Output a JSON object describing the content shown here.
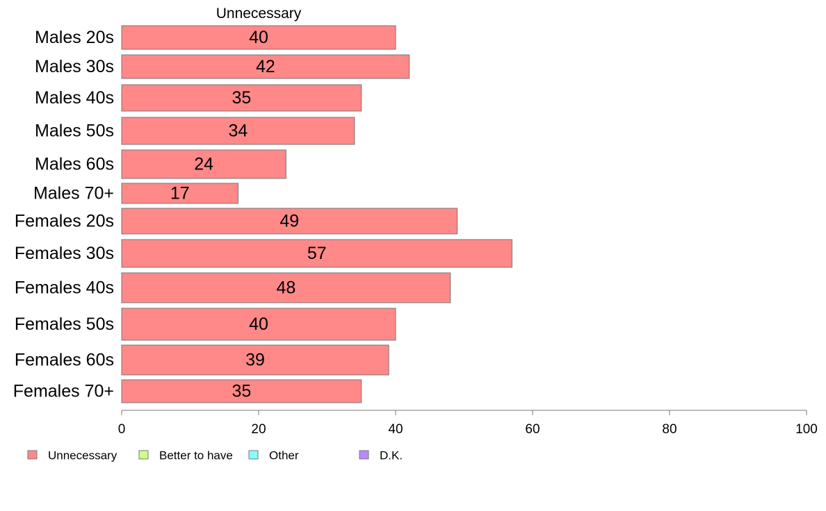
{
  "chart_data": {
    "type": "bar",
    "orientation": "horizontal",
    "title": "Unnecessary",
    "categories": [
      "Males 20s",
      "Males 30s",
      "Males 40s",
      "Males 50s",
      "Males 60s",
      "Males 70+",
      "Females 20s",
      "Females 30s",
      "Females 40s",
      "Females 50s",
      "Females 60s",
      "Females 70+"
    ],
    "series": [
      {
        "name": "Unnecessary",
        "color": "#ff8888",
        "values": [
          40,
          42,
          35,
          34,
          24,
          17,
          49,
          57,
          48,
          40,
          39,
          35
        ]
      }
    ],
    "xlim": [
      0,
      100
    ],
    "xticks": [
      0,
      20,
      40,
      60,
      80,
      100
    ],
    "xlabel": "",
    "ylabel": "",
    "grid": false,
    "legend": {
      "placement": "bottom-left",
      "items": [
        {
          "label": "Unnecessary",
          "color": "#ff8888"
        },
        {
          "label": "Better to have",
          "color": "#ccff88"
        },
        {
          "label": "Other",
          "color": "#88ffff"
        },
        {
          "label": "D.K.",
          "color": "#bb88ff"
        }
      ]
    }
  }
}
